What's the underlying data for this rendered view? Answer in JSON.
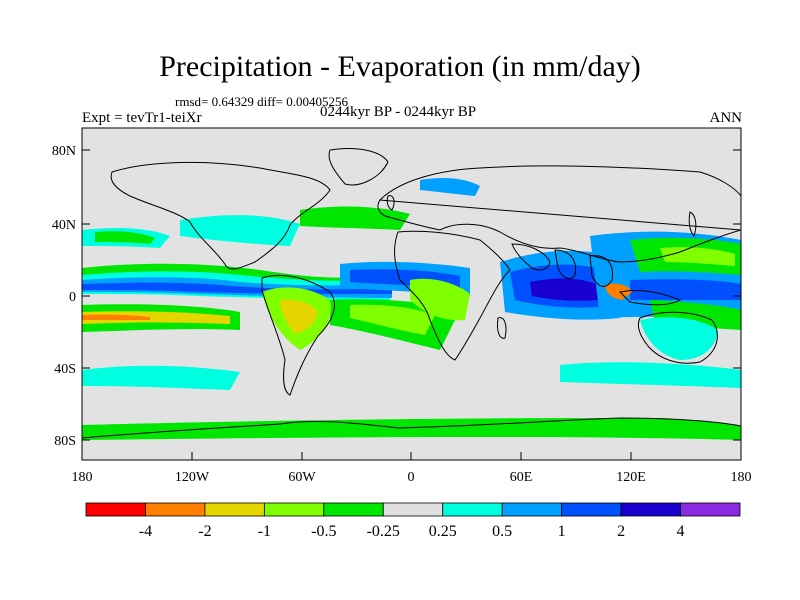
{
  "title": "Precipitation - Evaporation (in mm/day)",
  "stats": "rmsd= 0.64329  diff= 0.00405256",
  "period": "0244kyr BP - 0244kyr BP",
  "experiment": "Expt = tevTr1-teiXr",
  "season": "ANN",
  "lat_ticks": [
    "80N",
    "40N",
    "0",
    "40S",
    "80S"
  ],
  "lon_ticks": [
    "180",
    "120W",
    "60W",
    "0",
    "60E",
    "120E",
    "180"
  ],
  "colorbar": {
    "colors": [
      "#ff0000",
      "#ff8000",
      "#e6d600",
      "#80ff00",
      "#00e600",
      "#e0e0e0",
      "#00ffe0",
      "#00a0ff",
      "#0050ff",
      "#1a00d0",
      "#8a2be2"
    ],
    "labels": [
      "-4",
      "-2",
      "-1",
      "-0.5",
      "-0.25",
      "0.25",
      "0.5",
      "1",
      "2",
      "4"
    ]
  },
  "palette": {
    "ocean_bg": "#e2e2e2",
    "coast": "#000000"
  }
}
